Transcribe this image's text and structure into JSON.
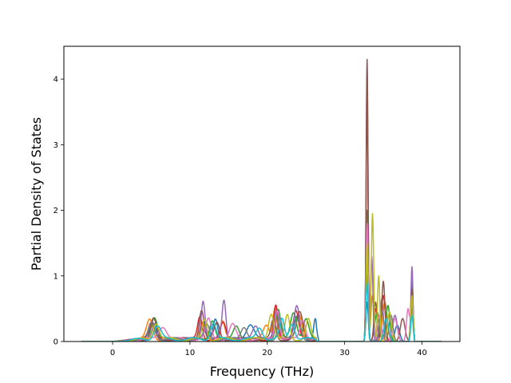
{
  "chart_data": {
    "type": "line",
    "title": "",
    "xlabel": "Frequency (THz)",
    "ylabel": "Partial Density of States",
    "xlim": [
      -6.3,
      44.9
    ],
    "ylim": [
      0,
      4.5
    ],
    "xticks": [
      0,
      10,
      20,
      30,
      40
    ],
    "yticks": [
      0,
      1,
      2,
      3,
      4
    ],
    "grid": false,
    "legend": "none",
    "colors": [
      "#1f77b4",
      "#ff7f0e",
      "#2ca02c",
      "#d62728",
      "#9467bd",
      "#8c564b",
      "#e377c2",
      "#7f7f7f",
      "#bcbd22",
      "#17becf"
    ],
    "series": [
      {
        "color": "#1f77b4",
        "peaks": [
          [
            5.2,
            0.24,
            0.4
          ],
          [
            11.8,
            0.25,
            0.35
          ],
          [
            13.3,
            0.32,
            0.3
          ],
          [
            17.8,
            0.24,
            0.5
          ],
          [
            21.2,
            0.38,
            0.3
          ],
          [
            23.9,
            0.35,
            0.4
          ],
          [
            26.2,
            0.3,
            0.2
          ],
          [
            32.9,
            0.6,
            0.15
          ],
          [
            34.5,
            0.35,
            0.3
          ],
          [
            36.8,
            0.25,
            0.3
          ],
          [
            38.7,
            0.6,
            0.15
          ]
        ]
      },
      {
        "color": "#ff7f0e",
        "peaks": [
          [
            4.8,
            0.3,
            0.4
          ],
          [
            11.6,
            0.2,
            0.35
          ],
          [
            14.2,
            0.28,
            0.3
          ],
          [
            19.9,
            0.22,
            0.4
          ],
          [
            21.0,
            0.5,
            0.25
          ],
          [
            24.1,
            0.4,
            0.4
          ],
          [
            32.9,
            1.2,
            0.13
          ],
          [
            33.6,
            0.7,
            0.2
          ],
          [
            35.2,
            0.6,
            0.3
          ],
          [
            38.7,
            0.8,
            0.15
          ]
        ]
      },
      {
        "color": "#2ca02c",
        "peaks": [
          [
            5.4,
            0.35,
            0.4
          ],
          [
            12.9,
            0.3,
            0.35
          ],
          [
            16.0,
            0.22,
            0.4
          ],
          [
            21.4,
            0.44,
            0.3
          ],
          [
            23.4,
            0.42,
            0.4
          ],
          [
            25.0,
            0.3,
            0.35
          ],
          [
            32.9,
            2.0,
            0.13
          ],
          [
            34.2,
            0.45,
            0.3
          ],
          [
            35.6,
            0.55,
            0.25
          ],
          [
            38.7,
            0.9,
            0.15
          ]
        ]
      },
      {
        "color": "#d62728",
        "peaks": [
          [
            5.0,
            0.28,
            0.4
          ],
          [
            11.3,
            0.35,
            0.3
          ],
          [
            14.3,
            0.24,
            0.35
          ],
          [
            21.1,
            0.5,
            0.25
          ],
          [
            23.7,
            0.45,
            0.35
          ],
          [
            32.9,
            3.8,
            0.12
          ],
          [
            34.0,
            0.5,
            0.2
          ],
          [
            35.0,
            0.7,
            0.25
          ],
          [
            38.7,
            0.7,
            0.15
          ]
        ]
      },
      {
        "color": "#9467bd",
        "peaks": [
          [
            5.5,
            0.22,
            0.4
          ],
          [
            11.7,
            0.6,
            0.25
          ],
          [
            14.4,
            0.6,
            0.25
          ],
          [
            18.5,
            0.22,
            0.4
          ],
          [
            21.2,
            0.42,
            0.3
          ],
          [
            23.8,
            0.5,
            0.35
          ],
          [
            32.9,
            4.28,
            0.12
          ],
          [
            33.5,
            1.3,
            0.15
          ],
          [
            34.8,
            0.65,
            0.2
          ],
          [
            36.5,
            0.4,
            0.3
          ],
          [
            38.7,
            1.14,
            0.13
          ]
        ]
      },
      {
        "color": "#8c564b",
        "peaks": [
          [
            5.3,
            0.3,
            0.35
          ],
          [
            11.5,
            0.45,
            0.3
          ],
          [
            13.5,
            0.25,
            0.35
          ],
          [
            20.8,
            0.3,
            0.3
          ],
          [
            24.2,
            0.4,
            0.4
          ],
          [
            32.9,
            4.3,
            0.12
          ],
          [
            34.0,
            0.6,
            0.2
          ],
          [
            35.0,
            0.92,
            0.2
          ],
          [
            37.5,
            0.35,
            0.3
          ],
          [
            38.7,
            0.8,
            0.15
          ]
        ]
      },
      {
        "color": "#e377c2",
        "peaks": [
          [
            6.5,
            0.2,
            0.5
          ],
          [
            12.4,
            0.3,
            0.35
          ],
          [
            15.5,
            0.22,
            0.4
          ],
          [
            21.3,
            0.46,
            0.3
          ],
          [
            24.6,
            0.3,
            0.35
          ],
          [
            32.9,
            1.8,
            0.13
          ],
          [
            34.5,
            0.4,
            0.25
          ],
          [
            36.5,
            0.35,
            0.3
          ],
          [
            38.2,
            0.5,
            0.2
          ],
          [
            38.7,
            0.6,
            0.15
          ]
        ]
      },
      {
        "color": "#7f7f7f",
        "peaks": [
          [
            5.1,
            0.26,
            0.4
          ],
          [
            12.2,
            0.22,
            0.35
          ],
          [
            17.0,
            0.2,
            0.4
          ],
          [
            21.6,
            0.34,
            0.3
          ],
          [
            24.0,
            0.32,
            0.35
          ],
          [
            32.9,
            1.0,
            0.14
          ],
          [
            34.8,
            0.45,
            0.3
          ],
          [
            36.0,
            0.4,
            0.25
          ],
          [
            38.7,
            0.5,
            0.15
          ]
        ]
      },
      {
        "color": "#bcbd22",
        "peaks": [
          [
            5.6,
            0.25,
            0.4
          ],
          [
            11.9,
            0.3,
            0.3
          ],
          [
            20.5,
            0.4,
            0.35
          ],
          [
            22.6,
            0.36,
            0.3
          ],
          [
            25.3,
            0.3,
            0.3
          ],
          [
            32.9,
            1.5,
            0.13
          ],
          [
            33.6,
            1.95,
            0.15
          ],
          [
            34.4,
            1.0,
            0.15
          ],
          [
            35.8,
            0.45,
            0.25
          ],
          [
            38.7,
            0.7,
            0.15
          ]
        ]
      },
      {
        "color": "#17becf",
        "peaks": [
          [
            5.8,
            0.2,
            0.45
          ],
          [
            13.0,
            0.25,
            0.35
          ],
          [
            19.0,
            0.18,
            0.4
          ],
          [
            21.9,
            0.3,
            0.3
          ],
          [
            23.2,
            0.25,
            0.35
          ],
          [
            32.9,
            0.9,
            0.14
          ],
          [
            35.4,
            0.35,
            0.3
          ],
          [
            38.7,
            0.4,
            0.15
          ]
        ]
      }
    ]
  }
}
